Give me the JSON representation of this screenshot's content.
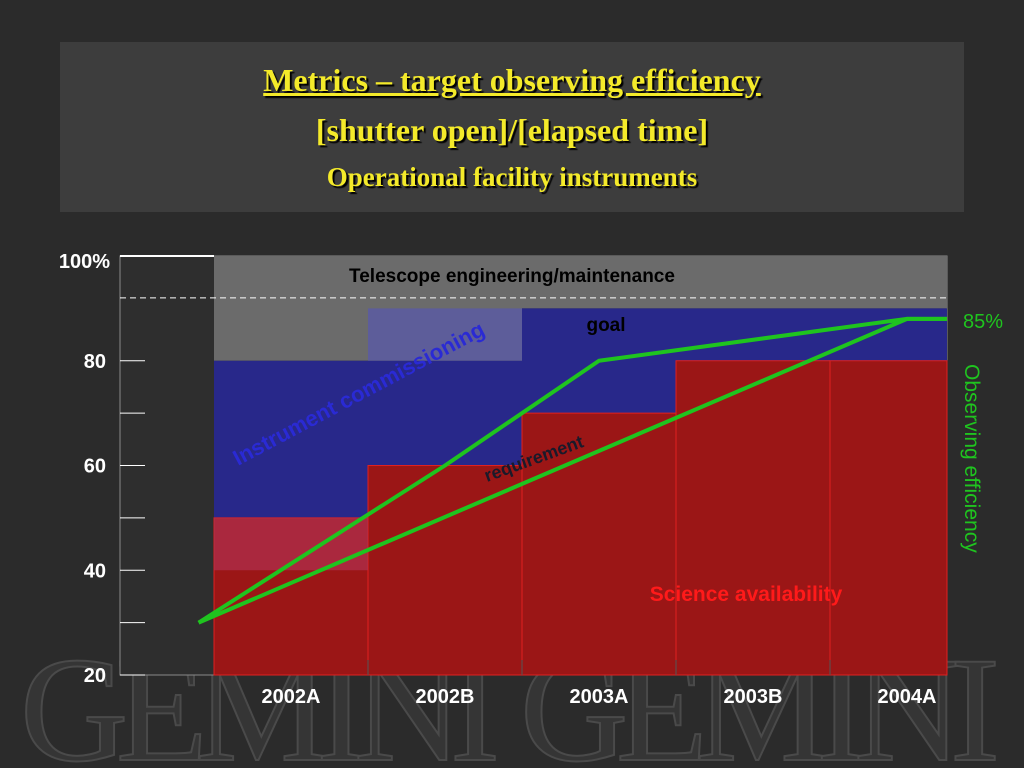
{
  "slide": {
    "title_line1": "Metrics – target observing efficiency",
    "title_line2": "[shutter open]/[elapsed time]",
    "title_line3": "Operational facility instruments",
    "watermark": "GEMINI"
  },
  "chart_data": {
    "type": "area",
    "categories": [
      "2002A",
      "2002B",
      "2003A",
      "2003B",
      "2004A"
    ],
    "y_ticks": [
      20,
      40,
      60,
      80
    ],
    "y_top_label": "100%",
    "ylim": [
      20,
      100
    ],
    "right_axis_label": "Observing efficiency",
    "right_value_label": "85%",
    "annotations": {
      "telescope": "Telescope engineering/maintenance",
      "commissioning": "Instrument commissioning",
      "goal": "goal",
      "requirement": "requirement",
      "science": "Science availability"
    },
    "regions": {
      "science_availability_top": [
        50,
        60,
        70,
        80,
        80
      ],
      "commissioning_top": [
        80,
        80,
        90,
        90,
        90
      ],
      "engineering_top": [
        100,
        100,
        100,
        100,
        100
      ]
    },
    "dashed_level": 92,
    "series": [
      {
        "name": "goal",
        "x": [
          -0.6,
          1.0,
          2.0,
          4.0,
          4.7
        ],
        "values": [
          30,
          60,
          80,
          88,
          88
        ]
      },
      {
        "name": "requirement",
        "x": [
          -0.6,
          4.0,
          4.7
        ],
        "values": [
          30,
          88,
          88
        ]
      }
    ],
    "colors": {
      "background": "#2b2b2b",
      "science": "#9b1616",
      "commissioning": "#28288a",
      "engineering": "#6b6b6b",
      "goal_line": "#1fc41f",
      "title": "#f4ea2a",
      "annotation_red": "#ff1a1a",
      "annotation_blue": "#2a2ad4"
    }
  }
}
